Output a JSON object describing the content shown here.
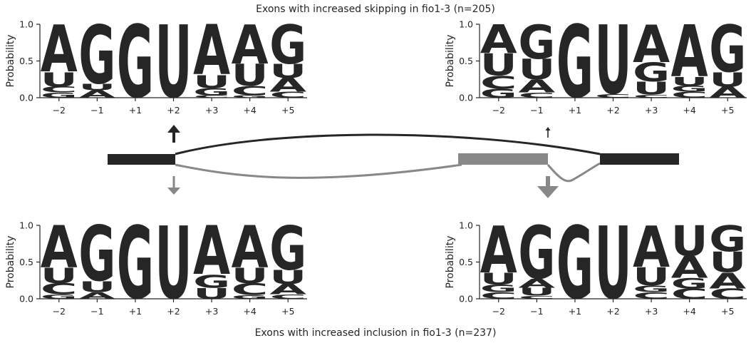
{
  "titles": {
    "top": "Exons with increased skipping in fio1-3 (n=205)",
    "bottom": "Exons with increased inclusion in fio1-3 (n=237)"
  },
  "colors": {
    "A": "#009e73",
    "C": "#0072b2",
    "G": "#f0e442",
    "U": "#d55e00",
    "exon_dark": "#262626",
    "exon_grey": "#888888"
  },
  "chart_data": [
    {
      "type": "sequence_logo",
      "name": "top-left",
      "ylabel": "Probability",
      "ylim": [
        0,
        1.0
      ],
      "yticks": [
        "0.0",
        "0.5",
        "1.0"
      ],
      "positions": [
        "−2",
        "−1",
        "+1",
        "+2",
        "+3",
        "+4",
        "+5"
      ],
      "stacks": [
        [
          [
            "G",
            0.07
          ],
          [
            "C",
            0.08
          ],
          [
            "U",
            0.2
          ],
          [
            "A",
            0.65
          ]
        ],
        [
          [
            "A",
            0.1
          ],
          [
            "U",
            0.09
          ],
          [
            "G",
            0.81
          ]
        ],
        [
          [
            "G",
            1.0
          ]
        ],
        [
          [
            "U",
            1.0
          ]
        ],
        [
          [
            "C",
            0.03
          ],
          [
            "G",
            0.1
          ],
          [
            "U",
            0.18
          ],
          [
            "A",
            0.69
          ]
        ],
        [
          [
            "G",
            0.03
          ],
          [
            "C",
            0.13
          ],
          [
            "U",
            0.3
          ],
          [
            "A",
            0.54
          ]
        ],
        [
          [
            "C",
            0.08
          ],
          [
            "A",
            0.19
          ],
          [
            "U",
            0.19
          ],
          [
            "G",
            0.54
          ]
        ]
      ]
    },
    {
      "type": "sequence_logo",
      "name": "top-right",
      "ylabel": "Probability",
      "ylim": [
        0,
        1.0
      ],
      "yticks": [
        "0.0",
        "0.5",
        "1.0"
      ],
      "positions": [
        "−2",
        "−1",
        "+1",
        "+2",
        "+3",
        "+4",
        "+5"
      ],
      "stacks": [
        [
          [
            "G",
            0.12
          ],
          [
            "C",
            0.18
          ],
          [
            "U",
            0.3
          ],
          [
            "A",
            0.4
          ]
        ],
        [
          [
            "C",
            0.07
          ],
          [
            "A",
            0.18
          ],
          [
            "U",
            0.28
          ],
          [
            "G",
            0.47
          ]
        ],
        [
          [
            "G",
            1.0
          ]
        ],
        [
          [
            "C",
            0.05
          ],
          [
            "U",
            0.95
          ]
        ],
        [
          [
            "C",
            0.04
          ],
          [
            "U",
            0.18
          ],
          [
            "G",
            0.26
          ],
          [
            "A",
            0.52
          ]
        ],
        [
          [
            "C",
            0.08
          ],
          [
            "G",
            0.08
          ],
          [
            "U",
            0.12
          ],
          [
            "A",
            0.72
          ]
        ],
        [
          [
            "A",
            0.15
          ],
          [
            "U",
            0.2
          ],
          [
            "G",
            0.65
          ]
        ]
      ]
    },
    {
      "type": "sequence_logo",
      "name": "bottom-left",
      "ylabel": "Probability",
      "ylim": [
        0,
        1.0
      ],
      "yticks": [
        "0.0",
        "0.5",
        "1.0"
      ],
      "positions": [
        "−2",
        "−1",
        "+1",
        "+2",
        "+3",
        "+4",
        "+5"
      ],
      "stacks": [
        [
          [
            "G",
            0.06
          ],
          [
            "C",
            0.15
          ],
          [
            "U",
            0.21
          ],
          [
            "A",
            0.58
          ]
        ],
        [
          [
            "A",
            0.09
          ],
          [
            "U",
            0.15
          ],
          [
            "G",
            0.76
          ]
        ],
        [
          [
            "G",
            1.0
          ]
        ],
        [
          [
            "U",
            1.0
          ]
        ],
        [
          [
            "U",
            0.15
          ],
          [
            "G",
            0.18
          ],
          [
            "A",
            0.67
          ]
        ],
        [
          [
            "G",
            0.05
          ],
          [
            "C",
            0.16
          ],
          [
            "U",
            0.21
          ],
          [
            "A",
            0.58
          ]
        ],
        [
          [
            "C",
            0.06
          ],
          [
            "A",
            0.14
          ],
          [
            "U",
            0.19
          ],
          [
            "G",
            0.61
          ]
        ]
      ]
    },
    {
      "type": "sequence_logo",
      "name": "bottom-right",
      "ylabel": "Probability",
      "ylim": [
        0,
        1.0
      ],
      "yticks": [
        "0.0",
        "0.5",
        "1.0"
      ],
      "positions": [
        "−2",
        "−1",
        "+1",
        "+2",
        "+3",
        "+4",
        "+5"
      ],
      "stacks": [
        [
          [
            "C",
            0.09
          ],
          [
            "G",
            0.1
          ],
          [
            "U",
            0.16
          ],
          [
            "A",
            0.65
          ]
        ],
        [
          [
            "C",
            0.04
          ],
          [
            "U",
            0.11
          ],
          [
            "A",
            0.12
          ],
          [
            "G",
            0.73
          ]
        ],
        [
          [
            "G",
            1.0
          ]
        ],
        [
          [
            "U",
            1.0
          ]
        ],
        [
          [
            "C",
            0.09
          ],
          [
            "G",
            0.09
          ],
          [
            "U",
            0.25
          ],
          [
            "A",
            0.57
          ]
        ],
        [
          [
            "C",
            0.14
          ],
          [
            "G",
            0.14
          ],
          [
            "A",
            0.3
          ],
          [
            "U",
            0.42
          ]
        ],
        [
          [
            "C",
            0.14
          ],
          [
            "A",
            0.22
          ],
          [
            "U",
            0.28
          ],
          [
            "G",
            0.36
          ]
        ]
      ]
    }
  ]
}
